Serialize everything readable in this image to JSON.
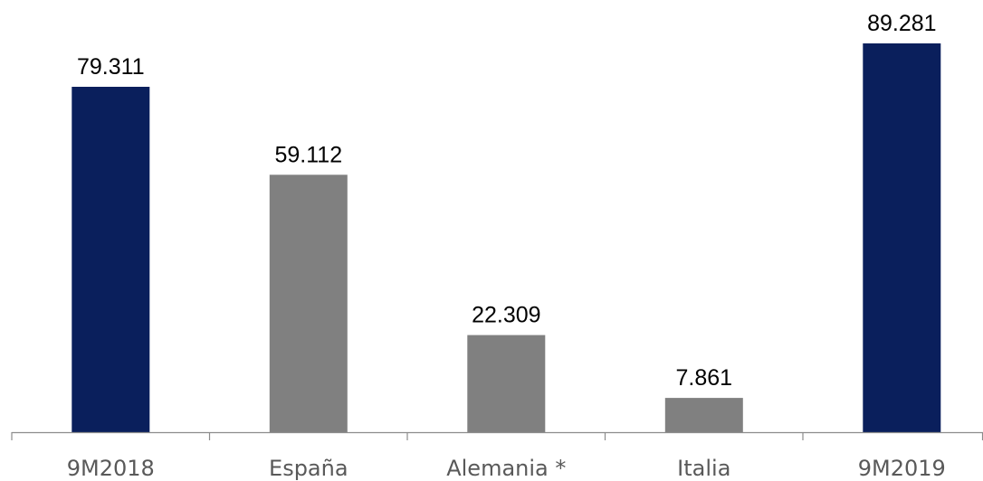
{
  "chart_data": {
    "type": "bar",
    "title": "",
    "xlabel": "",
    "ylabel": "",
    "categories": [
      "9M2018",
      "España",
      "Alemania *",
      "Italia",
      "9M2019"
    ],
    "values": [
      79311,
      59112,
      22309,
      7861,
      89281
    ],
    "value_labels": [
      "79.311",
      "59.112",
      "22.309",
      "7.861",
      "89.281"
    ],
    "bar_colors": [
      "#0a1f5c",
      "#808080",
      "#808080",
      "#808080",
      "#0a1f5c"
    ],
    "ylim": [
      0,
      89281
    ],
    "grid": false,
    "legend": "none",
    "axis_color": "#8c8c8c",
    "tick_label_color": "#595959"
  }
}
